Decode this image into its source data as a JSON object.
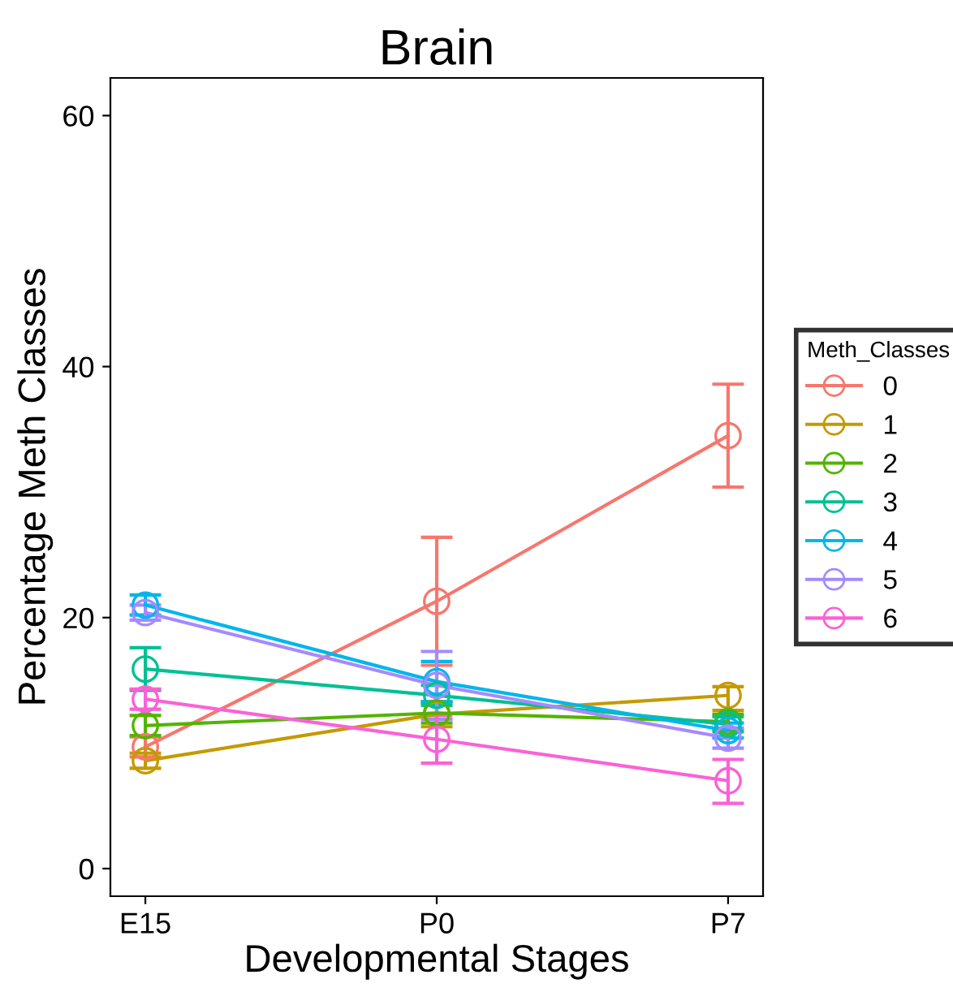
{
  "chart_data": {
    "type": "line",
    "title": "Brain",
    "xlabel": "Developmental Stages",
    "ylabel": "Percentage Meth Classes",
    "legend_title": "Meth_Classes",
    "categories": [
      "E15",
      "P0",
      "P7"
    ],
    "ylim": [
      -2.2,
      63
    ],
    "yticks": [
      0,
      20,
      40,
      60
    ],
    "grid": false,
    "legend": "right",
    "marker": "circle",
    "line_style": "solid",
    "series": [
      {
        "name": "0",
        "color": "#f8766d",
        "values": [
          9.7,
          21.3,
          34.5
        ],
        "errors": [
          0.8,
          [
            16.2,
            26.4
          ],
          [
            30.4,
            38.6
          ]
        ]
      },
      {
        "name": "1",
        "color": "#c49a00",
        "values": [
          8.6,
          12.3,
          13.8
        ],
        "errors": [
          0.6,
          1.0,
          [
            12.6,
            14.5
          ]
        ]
      },
      {
        "name": "2",
        "color": "#53b400",
        "values": [
          11.4,
          12.4,
          11.7
        ],
        "errors": [
          0.8,
          0.8,
          0.6
        ]
      },
      {
        "name": "3",
        "color": "#00c094",
        "values": [
          15.9,
          13.8,
          11.5
        ],
        "errors": [
          1.7,
          0.8,
          0.6
        ]
      },
      {
        "name": "4",
        "color": "#00b6eb",
        "values": [
          21.0,
          14.9,
          11.0
        ],
        "errors": [
          0.8,
          1.6,
          0.6
        ]
      },
      {
        "name": "5",
        "color": "#a58aff",
        "values": [
          20.4,
          14.6,
          10.4
        ],
        "errors": [
          0.6,
          2.7,
          0.8
        ]
      },
      {
        "name": "6",
        "color": "#fb61d7",
        "values": [
          13.5,
          10.3,
          7.0
        ],
        "errors": [
          0.8,
          1.9,
          [
            5.2,
            8.7
          ]
        ]
      }
    ]
  }
}
